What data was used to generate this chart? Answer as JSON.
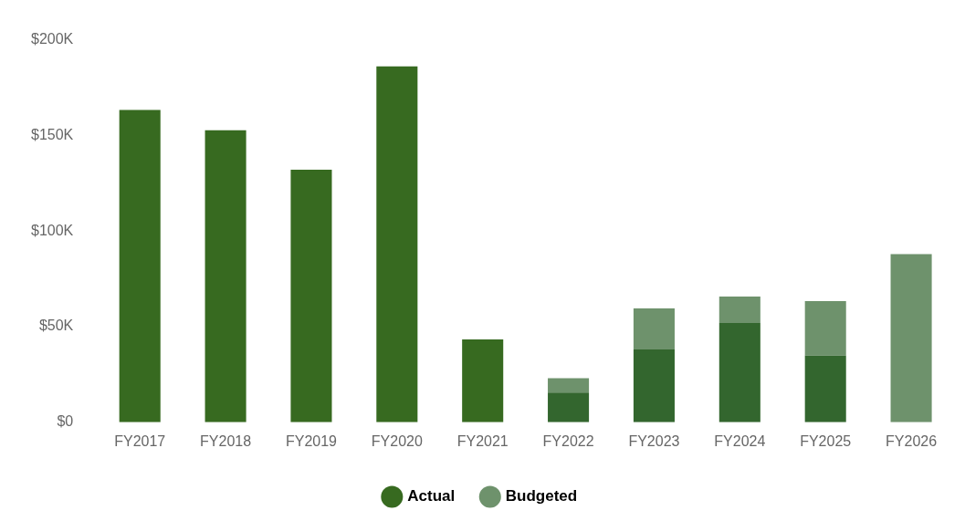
{
  "chart_data": {
    "type": "bar",
    "stacked": true,
    "categories": [
      "FY2017",
      "FY2018",
      "FY2019",
      "FY2020",
      "FY2021",
      "FY2022",
      "FY2023",
      "FY2024",
      "FY2025",
      "FY2026"
    ],
    "series": [
      {
        "name": "Actual",
        "color": "#376a20",
        "colors": [
          "#376a20",
          "#376a20",
          "#376a20",
          "#376a20",
          "#376a20",
          "#33662e",
          "#33662e",
          "#33662e",
          "#33662e",
          "#33662e"
        ],
        "values": [
          163300,
          152700,
          132100,
          186100,
          43300,
          15500,
          38100,
          51900,
          34800,
          null
        ]
      },
      {
        "name": "Budgeted",
        "color": "#6e926c",
        "values": [
          null,
          null,
          null,
          null,
          null,
          7600,
          21500,
          13900,
          28600,
          87900
        ]
      }
    ],
    "ylim": [
      0,
      200000
    ],
    "yticks": [
      {
        "value": 0,
        "label": "$0"
      },
      {
        "value": 50000,
        "label": "$50K"
      },
      {
        "value": 100000,
        "label": "$100K"
      },
      {
        "value": 150000,
        "label": "$150K"
      },
      {
        "value": 200000,
        "label": "$200K"
      }
    ],
    "grid": false,
    "legend": "bottom"
  }
}
